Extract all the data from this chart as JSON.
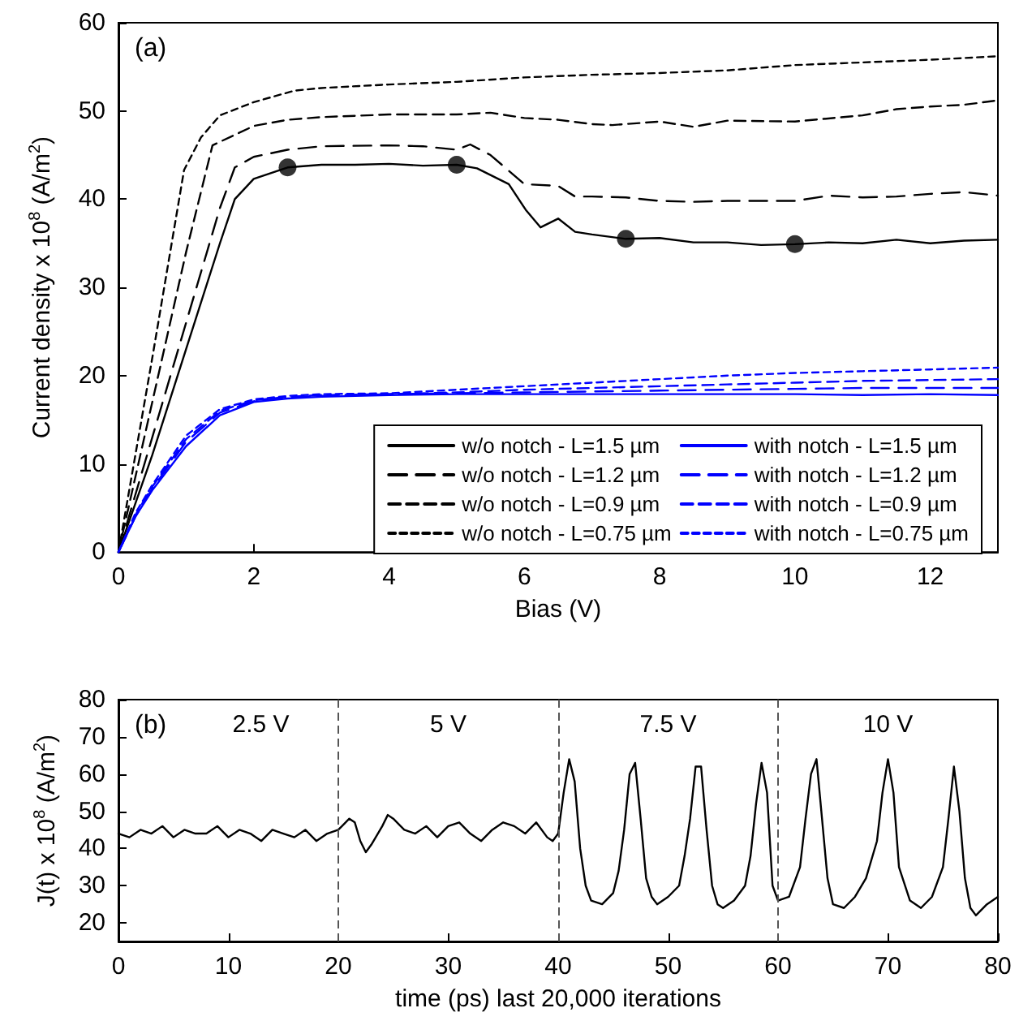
{
  "chart_data": [
    {
      "type": "line",
      "xlabel": "Bias (V)",
      "ylabel": "Current density x 10$^{8}$ (A/m$^{2}$)",
      "annotations": [
        "(a)"
      ],
      "xlim": [
        0,
        13
      ],
      "xticks": [
        0,
        2,
        4,
        6,
        8,
        10,
        12
      ],
      "ylim": [
        0,
        60
      ],
      "yticks": [
        0,
        10,
        20,
        30,
        40,
        50,
        60
      ],
      "legend": "bottom right",
      "marker": "none",
      "series": [
        {
          "name": "w/o notch - L=1.5 µm",
          "color": "#000000",
          "line_style": "solid",
          "x": [
            0,
            0.5,
            1,
            1.5,
            1.72,
            2,
            2.5,
            3,
            3.5,
            4,
            4.5,
            5,
            5.3,
            5.77,
            6.02,
            6.24,
            6.5,
            6.75,
            7,
            7.5,
            8,
            8.5,
            9,
            9.5,
            10,
            10.5,
            11,
            11.5,
            12,
            12.5,
            13
          ],
          "values": [
            0,
            11,
            23,
            35,
            40,
            42.3,
            43.6,
            43.9,
            43.9,
            44,
            43.8,
            43.9,
            43.5,
            41.7,
            38.8,
            36.8,
            37.8,
            36.3,
            36,
            35.5,
            35.6,
            35.1,
            35.1,
            34.8,
            34.9,
            35.1,
            35,
            35.4,
            35,
            35.3,
            35.4
          ]
        },
        {
          "name": "w/o notch - L=1.2 µm",
          "color": "#000000",
          "line_style": "dashed",
          "x": [
            0,
            0.5,
            1,
            1.5,
            1.72,
            2,
            2.5,
            3,
            4,
            4.5,
            5,
            5.2,
            5.5,
            6,
            6.5,
            6.75,
            7,
            7.5,
            8,
            8.5,
            9,
            9.5,
            10,
            10.5,
            11,
            11.5,
            12,
            12.5,
            13
          ],
          "values": [
            0,
            13,
            26,
            39,
            43.6,
            44.8,
            45.6,
            46,
            46.1,
            46,
            45.6,
            46.2,
            45,
            41.7,
            41.5,
            40.3,
            40.3,
            40.2,
            39.8,
            39.7,
            39.8,
            39.8,
            39.8,
            40.4,
            40.2,
            40.3,
            40.6,
            40.8,
            40.4
          ]
        },
        {
          "name": "w/o notch - L=0.9 µm",
          "color": "#000000",
          "line_style": "dashed",
          "x": [
            0,
            0.5,
            1,
            1.39,
            2,
            2.5,
            3,
            4,
            5,
            5.5,
            6,
            6.5,
            7,
            7.3,
            8,
            8.5,
            9,
            10,
            11,
            11.5,
            12,
            12.5,
            13
          ],
          "values": [
            0,
            17,
            34,
            46.1,
            48.3,
            49,
            49.3,
            49.6,
            49.6,
            49.8,
            49.2,
            49,
            48.5,
            48.4,
            48.8,
            48.2,
            48.9,
            48.8,
            49.5,
            50.2,
            50.5,
            50.7,
            51.2
          ]
        },
        {
          "name": "w/o notch - L=0.75 µm",
          "color": "#000000",
          "line_style": "dashed",
          "x": [
            0,
            0.5,
            0.97,
            1.22,
            1.5,
            2,
            2.6,
            3,
            4,
            5,
            6,
            7,
            8,
            9,
            10,
            11,
            12,
            13
          ],
          "values": [
            0,
            22,
            43.3,
            47,
            49.5,
            51,
            52.3,
            52.6,
            53,
            53.3,
            53.8,
            54.1,
            54.3,
            54.6,
            55.2,
            55.5,
            55.8,
            56.2
          ]
        },
        {
          "name": "with notch - L=1.5 µm",
          "color": "#0000ff",
          "line_style": "solid",
          "x": [
            0,
            0.25,
            0.5,
            1,
            1.5,
            2,
            2.5,
            3,
            4,
            5,
            6,
            7,
            8,
            9,
            10,
            11,
            12,
            13
          ],
          "values": [
            0,
            4,
            7,
            12,
            15.5,
            17,
            17.4,
            17.6,
            17.8,
            17.9,
            17.9,
            17.9,
            17.9,
            17.9,
            17.9,
            17.8,
            17.9,
            17.8
          ]
        },
        {
          "name": "with notch - L=1.2 µm",
          "color": "#0000ff",
          "line_style": "dashed",
          "x": [
            0,
            0.25,
            0.5,
            1,
            1.5,
            2,
            2.5,
            3,
            4,
            5,
            6,
            7,
            8,
            9,
            10,
            11,
            12,
            13
          ],
          "values": [
            0,
            4,
            7.2,
            12.5,
            15.8,
            17.1,
            17.5,
            17.7,
            17.9,
            18,
            18.1,
            18.2,
            18.3,
            18.4,
            18.5,
            18.6,
            18.6,
            18.6
          ]
        },
        {
          "name": "with notch - L=0.9 µm",
          "color": "#0000ff",
          "line_style": "dashed",
          "x": [
            0,
            0.25,
            0.5,
            1,
            1.5,
            2,
            2.5,
            3,
            4,
            5,
            6,
            7,
            8,
            9,
            10,
            11,
            12,
            13
          ],
          "values": [
            0,
            4.2,
            7.4,
            12.8,
            16,
            17.2,
            17.6,
            17.8,
            17.9,
            18.1,
            18.4,
            18.6,
            18.8,
            19,
            19.2,
            19.4,
            19.5,
            19.6
          ]
        },
        {
          "name": "with notch - L=0.75 µm",
          "color": "#0000ff",
          "line_style": "dashed",
          "x": [
            0,
            0.25,
            0.5,
            1,
            1.5,
            2,
            2.5,
            3,
            4,
            5,
            6,
            7,
            8,
            9,
            10,
            11,
            12,
            13
          ],
          "values": [
            0,
            4.4,
            7.6,
            13.2,
            16.2,
            17.3,
            17.7,
            17.9,
            18,
            18.4,
            18.8,
            19.2,
            19.6,
            20,
            20.3,
            20.5,
            20.7,
            20.9
          ]
        },
        {
          "type": "scatter",
          "marker": "circle",
          "color": "#000000",
          "x": [
            2.5,
            5,
            7.5,
            10
          ],
          "values": [
            43.6,
            43.9,
            35.5,
            34.9
          ]
        }
      ]
    },
    {
      "type": "line",
      "xlabel": "time (ps) last 20,000 iterations",
      "ylabel": "J(t) x 10$^{8}$ (A/m$^{2}$)",
      "annotations": [
        "(b)",
        "2.5 V",
        "5 V",
        "7.5 V",
        "10 V"
      ],
      "xlim": [
        0,
        80
      ],
      "xticks": [
        0,
        10,
        20,
        30,
        40,
        50,
        60,
        70,
        80
      ],
      "ylim": [
        15,
        80
      ],
      "yticks": [
        20,
        30,
        40,
        50,
        60,
        70,
        80
      ],
      "marker": "none",
      "ref_lines": [
        {
          "axis": "x",
          "value": 20,
          "color": "#555555",
          "line_style": "dashed"
        },
        {
          "axis": "x",
          "value": 40,
          "color": "#555555",
          "line_style": "dashed"
        },
        {
          "axis": "x",
          "value": 60,
          "color": "#555555",
          "line_style": "dashed"
        }
      ],
      "series": [
        {
          "color": "#000000",
          "line_style": "solid",
          "x": [
            0,
            1,
            2,
            3,
            4,
            5,
            6,
            7,
            8,
            9,
            10,
            11,
            12,
            13,
            14,
            15,
            16,
            17,
            18,
            19,
            20,
            21,
            21.5,
            22,
            22.5,
            23,
            24,
            24.5,
            25,
            26,
            27,
            28,
            29,
            30,
            31,
            32,
            33,
            34,
            35,
            36,
            37,
            38,
            39,
            39.5,
            40,
            40.5,
            41,
            41.5,
            42,
            42.5,
            43,
            44,
            45,
            45.5,
            46,
            46.5,
            47,
            47.5,
            48,
            48.5,
            49,
            50,
            51,
            51.5,
            52,
            52.5,
            53,
            53.5,
            54,
            54.5,
            55,
            56,
            57,
            57.5,
            58,
            58.5,
            59,
            59.5,
            60,
            61,
            62,
            62.5,
            63,
            63.5,
            64,
            64.5,
            65,
            66,
            67,
            68,
            69,
            69.5,
            70,
            70.5,
            71,
            72,
            73,
            74,
            75,
            75.5,
            76,
            76.5,
            77,
            77.5,
            78,
            79,
            80
          ],
          "values": [
            44,
            43,
            45,
            44,
            46,
            43,
            45,
            44,
            44,
            46,
            43,
            45,
            44,
            42,
            45,
            44,
            43,
            45,
            42,
            44,
            45,
            48,
            47,
            42,
            39,
            41,
            46,
            49,
            48,
            45,
            44,
            46,
            43,
            46,
            47,
            44,
            42,
            45,
            47,
            46,
            44,
            47,
            43,
            42,
            44,
            55,
            64,
            58,
            40,
            30,
            26,
            25,
            28,
            34,
            45,
            60,
            63,
            48,
            32,
            27,
            25,
            27,
            30,
            38,
            48,
            62,
            62,
            45,
            30,
            25,
            24,
            26,
            30,
            38,
            52,
            63,
            55,
            30,
            26,
            27,
            35,
            48,
            60,
            64,
            48,
            32,
            25,
            24,
            27,
            32,
            42,
            55,
            64,
            55,
            35,
            26,
            24,
            27,
            35,
            48,
            62,
            50,
            32,
            24,
            22,
            25,
            27
          ]
        }
      ]
    }
  ]
}
